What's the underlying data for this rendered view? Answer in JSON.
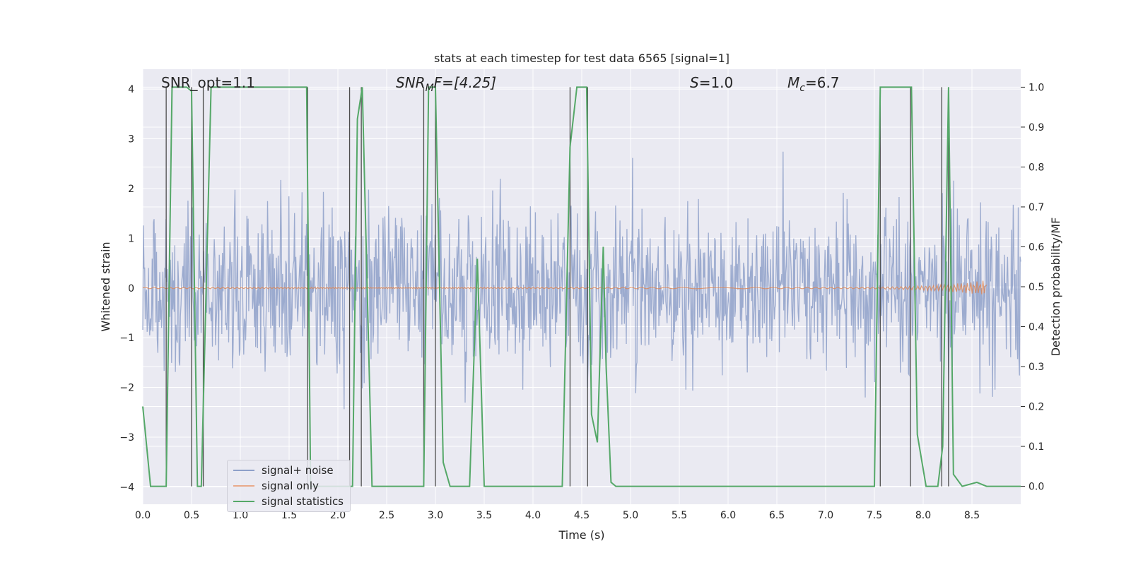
{
  "chart_data": {
    "type": "line",
    "title": "stats at each timestep for test data 6565 [signal=1]",
    "xlabel": "Time (s)",
    "ylabel": "Whitened strain",
    "ylabel_right": "Detection probability/MF",
    "xlim": [
      0.0,
      9.0
    ],
    "ylim": [
      -4.35,
      4.4
    ],
    "ylim_right": [
      -0.045,
      1.045
    ],
    "xticks": [
      "0.0",
      "0.5",
      "1.0",
      "1.5",
      "2.0",
      "2.5",
      "3.0",
      "3.5",
      "4.0",
      "4.5",
      "5.0",
      "5.5",
      "6.0",
      "6.5",
      "7.0",
      "7.5",
      "8.0",
      "8.5"
    ],
    "yticks": [
      "−4",
      "−3",
      "−2",
      "−1",
      "0",
      "1",
      "2",
      "3",
      "4"
    ],
    "yticks_right": [
      "0.0",
      "0.1",
      "0.2",
      "0.3",
      "0.4",
      "0.5",
      "0.6",
      "0.7",
      "0.8",
      "0.9",
      "1.0"
    ],
    "grid": true,
    "annotations": {
      "snr_opt": "SNR_opt=1.1",
      "snr_mf_italic": "SNR",
      "snr_mf_sub": "M",
      "snr_mf_rest": "F=[4.25]",
      "s_italic": "S",
      "s_rest": "=1.0",
      "mc_italic": "M",
      "mc_sub": "c",
      "mc_rest": "=6.7"
    },
    "series": [
      {
        "name": "signal+ noise",
        "color": "#8ea0c9",
        "description": "noisy whitened strain, roughly within [-4, 4]"
      },
      {
        "name": "signal only",
        "color": "#dd8452",
        "description": "small chirp growing near t=7.5-8.7 s"
      },
      {
        "name": "signal statistics",
        "color": "#55a868",
        "x": [
          0.0,
          0.08,
          0.24,
          0.3,
          0.45,
          0.5,
          0.56,
          0.6,
          0.7,
          1.0,
          1.5,
          1.68,
          1.72,
          1.9,
          2.15,
          2.2,
          2.25,
          2.35,
          2.5,
          2.7,
          2.88,
          2.93,
          3.0,
          3.08,
          3.15,
          3.35,
          3.43,
          3.5,
          3.6,
          4.0,
          4.3,
          4.38,
          4.45,
          4.55,
          4.6,
          4.66,
          4.72,
          4.75,
          4.8,
          4.85,
          4.95,
          5.1,
          5.3,
          5.5,
          5.8,
          6.2,
          7.0,
          7.5,
          7.56,
          7.62,
          7.7,
          7.88,
          7.94,
          8.03,
          8.15,
          8.2,
          8.26,
          8.31,
          8.4,
          8.55,
          8.65,
          9.0
        ],
        "y": [
          0.2,
          0.0,
          0.0,
          1.0,
          1.0,
          0.99,
          0.0,
          0.0,
          1.0,
          1.0,
          1.0,
          1.0,
          0.0,
          0.0,
          0.0,
          0.92,
          1.0,
          0.0,
          0.0,
          0.0,
          0.0,
          1.0,
          1.0,
          0.06,
          0.0,
          0.0,
          0.57,
          0.0,
          0.0,
          0.0,
          0.0,
          0.85,
          1.0,
          1.0,
          0.18,
          0.11,
          0.6,
          0.3,
          0.01,
          0.0,
          0.0,
          0.0,
          0.0,
          0.0,
          0.0,
          0.0,
          0.0,
          0.0,
          1.0,
          1.0,
          1.0,
          1.0,
          0.13,
          0.0,
          0.0,
          0.1,
          1.0,
          0.03,
          0.0,
          0.01,
          0.0,
          0.0
        ]
      }
    ],
    "vlines_x": [
      0.24,
      0.5,
      0.62,
      1.69,
      2.12,
      2.24,
      2.88,
      3.0,
      4.38,
      4.56,
      7.56,
      7.87,
      8.19,
      8.26
    ],
    "legend_position": "lower-left"
  }
}
